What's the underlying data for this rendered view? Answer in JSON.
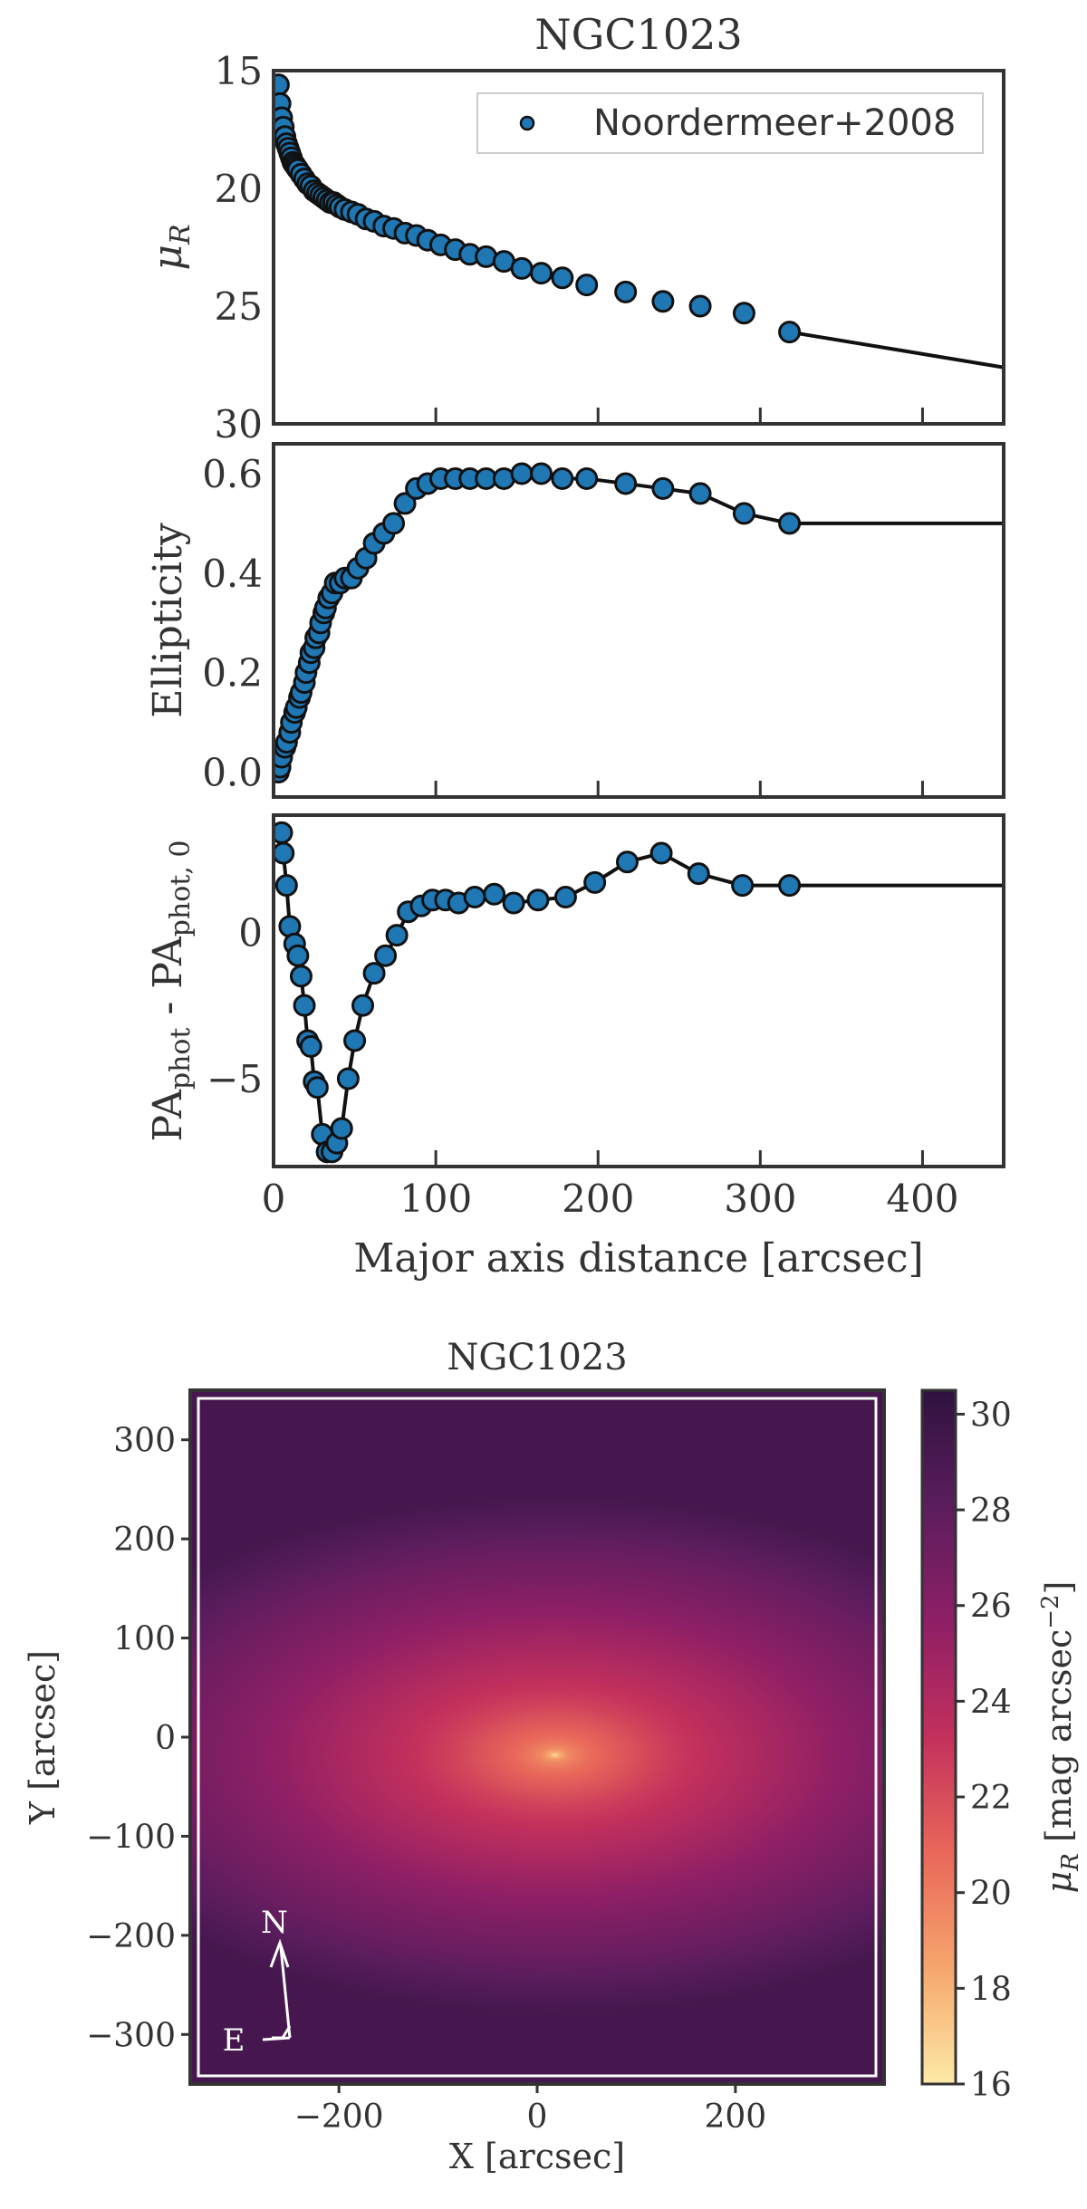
{
  "colors": {
    "marker_fill": "#1f77b4",
    "marker_edge": "#111111",
    "line": "#111111",
    "axis": "#333333",
    "compass": "#ffffff"
  },
  "chart_data": [
    {
      "type": "scatter",
      "title": "NGC1023",
      "xlabel": "",
      "ylabel": "μ_R",
      "ylabel_main": "μ",
      "ylabel_sub": "R",
      "xlim": [
        0,
        450
      ],
      "ylim": [
        30,
        15
      ],
      "y_inverted": true,
      "xticks": [
        0,
        100,
        200,
        300,
        400
      ],
      "yticks": [
        15,
        20,
        25,
        30
      ],
      "ytick_labels": [
        "15",
        "20",
        "25",
        "30"
      ],
      "legend": {
        "label": "Noordermeer+2008",
        "position": "upper-right"
      },
      "series": [
        {
          "name": "Noordermeer+2008",
          "x": [
            3,
            4,
            5,
            6,
            7,
            8,
            9,
            10,
            11,
            12,
            13,
            14,
            15,
            17,
            19,
            21,
            23,
            25,
            27,
            29,
            31,
            33,
            35,
            37,
            39,
            41,
            44,
            48,
            52,
            57,
            62,
            68,
            74,
            81,
            88,
            95,
            103,
            112,
            121,
            131,
            142,
            153,
            165,
            178,
            193,
            217,
            240,
            263,
            290,
            318
          ],
          "y": [
            15.6,
            16.4,
            17.0,
            17.4,
            17.8,
            18.1,
            18.3,
            18.5,
            18.7,
            18.9,
            19.0,
            19.1,
            19.2,
            19.4,
            19.6,
            19.8,
            19.9,
            20.1,
            20.2,
            20.3,
            20.4,
            20.5,
            20.6,
            20.6,
            20.7,
            20.8,
            20.9,
            21.0,
            21.1,
            21.3,
            21.4,
            21.6,
            21.7,
            21.9,
            22.0,
            22.2,
            22.4,
            22.6,
            22.8,
            22.9,
            23.1,
            23.4,
            23.6,
            23.8,
            24.1,
            24.4,
            24.8,
            25.0,
            25.3,
            26.1
          ]
        }
      ],
      "model_line": {
        "x": [
          318,
          450
        ],
        "y": [
          26.1,
          27.6
        ]
      }
    },
    {
      "type": "line",
      "title": "",
      "xlabel": "",
      "ylabel": "Ellipticity",
      "xlim": [
        0,
        450
      ],
      "ylim": [
        -0.05,
        0.66
      ],
      "xticks": [
        0,
        100,
        200,
        300,
        400
      ],
      "yticks": [
        0.0,
        0.2,
        0.4,
        0.6
      ],
      "ytick_labels": [
        "0.0",
        "0.2",
        "0.4",
        "0.6"
      ],
      "series": [
        {
          "name": "Noordermeer+2008",
          "x": [
            3,
            4,
            5,
            7,
            8,
            10,
            11,
            13,
            14,
            16,
            17,
            19,
            20,
            22,
            23,
            25,
            26,
            28,
            29,
            31,
            32,
            34,
            36,
            38,
            41,
            44,
            48,
            52,
            57,
            62,
            68,
            74,
            81,
            88,
            95,
            103,
            112,
            121,
            131,
            142,
            153,
            165,
            178,
            193,
            217,
            240,
            263,
            290,
            318
          ],
          "y": [
            0.0,
            0.01,
            0.03,
            0.05,
            0.06,
            0.08,
            0.1,
            0.12,
            0.13,
            0.15,
            0.16,
            0.18,
            0.2,
            0.22,
            0.24,
            0.25,
            0.27,
            0.28,
            0.3,
            0.32,
            0.33,
            0.35,
            0.36,
            0.38,
            0.38,
            0.39,
            0.39,
            0.41,
            0.43,
            0.46,
            0.48,
            0.5,
            0.54,
            0.57,
            0.58,
            0.59,
            0.59,
            0.59,
            0.59,
            0.59,
            0.6,
            0.6,
            0.59,
            0.59,
            0.58,
            0.57,
            0.56,
            0.52,
            0.5
          ]
        }
      ],
      "model_line": {
        "x": [
          318,
          450
        ],
        "y": [
          0.5,
          0.5
        ]
      }
    },
    {
      "type": "line",
      "title": "",
      "xlabel": "Major axis distance [arcsec]",
      "ylabel": "PA_phot - PA_phot,0",
      "ylabel_a": "PA",
      "ylabel_a_sub": "phot",
      "ylabel_mid": " - PA",
      "ylabel_b_sub": "phot, 0",
      "xlim": [
        0,
        450
      ],
      "ylim": [
        -8,
        4
      ],
      "xticks": [
        0,
        100,
        200,
        300,
        400
      ],
      "xtick_labels": [
        "0",
        "100",
        "200",
        "300",
        "400"
      ],
      "yticks": [
        0,
        -5
      ],
      "ytick_labels": [
        "0",
        "−5"
      ],
      "series": [
        {
          "name": "Noordermeer+2008",
          "x": [
            5,
            6,
            8,
            10,
            13,
            15,
            17,
            19,
            21,
            23,
            25,
            27,
            30,
            33,
            36,
            39,
            42,
            46,
            50,
            55,
            62,
            69,
            76,
            83,
            91,
            98,
            106,
            114,
            124,
            136,
            148,
            163,
            180,
            198,
            218,
            239,
            262,
            289,
            318
          ],
          "y": [
            3.4,
            2.7,
            1.6,
            0.2,
            -0.4,
            -0.8,
            -1.5,
            -2.5,
            -3.7,
            -3.9,
            -5.1,
            -5.3,
            -6.9,
            -7.5,
            -7.5,
            -7.2,
            -6.7,
            -5.0,
            -3.7,
            -2.5,
            -1.4,
            -0.8,
            -0.1,
            0.7,
            0.9,
            1.1,
            1.1,
            1.0,
            1.2,
            1.3,
            1.0,
            1.1,
            1.2,
            1.7,
            2.4,
            2.7,
            2.0,
            1.6,
            1.6
          ]
        }
      ],
      "model_line": {
        "x": [
          318,
          450
        ],
        "y": [
          1.6,
          1.6
        ]
      }
    },
    {
      "type": "heatmap",
      "title": "NGC1023",
      "xlabel": "X [arcsec]",
      "ylabel": "Y [arcsec]",
      "xlim": [
        -350,
        350
      ],
      "ylim": [
        -350,
        350
      ],
      "xticks": [
        -200,
        0,
        200
      ],
      "xtick_labels": [
        "−200",
        "0",
        "200"
      ],
      "yticks": [
        300,
        200,
        100,
        0,
        -100,
        -200,
        -300
      ],
      "ytick_labels": [
        "300",
        "200",
        "100",
        "0",
        "−100",
        "−200",
        "−300"
      ],
      "center": [
        18,
        -18
      ],
      "axis_ratio": 0.5,
      "model_mu": {
        "radius": [
          0,
          1,
          3,
          6,
          10,
          15,
          22,
          30,
          40,
          55,
          75,
          100,
          130,
          170,
          220,
          280,
          340,
          420,
          520
        ],
        "value": [
          16.0,
          16.5,
          17.5,
          18.3,
          19.0,
          19.6,
          20.0,
          20.4,
          20.8,
          21.2,
          21.7,
          22.4,
          23.0,
          23.7,
          24.5,
          25.5,
          26.4,
          27.6,
          29.3
        ]
      },
      "colorbar": {
        "label": "μ_R [mag arcsec^-2]",
        "label_main": "μ",
        "label_sub": "R",
        "label_rest": " [mag arcsec",
        "label_sup": "−2",
        "label_end": "]",
        "range": [
          16,
          30.5
        ],
        "ticks": [
          30,
          28,
          26,
          24,
          22,
          20,
          18,
          16
        ],
        "tick_labels": [
          "30",
          "28",
          "26",
          "24",
          "22",
          "20",
          "18",
          "16"
        ],
        "colormap_stops": [
          "#fdeaa6",
          "#f6a66d",
          "#e9675a",
          "#c3305c",
          "#8e1f66",
          "#5b1d5d",
          "#2f123f"
        ]
      },
      "compass": {
        "north_label": "N",
        "east_label": "E"
      }
    }
  ]
}
